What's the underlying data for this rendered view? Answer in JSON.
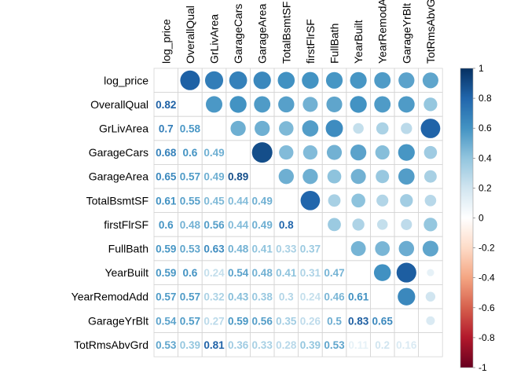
{
  "chart_data": {
    "type": "heatmap",
    "subtype": "correlation-matrix-mixed",
    "upper": "circle",
    "lower": "number",
    "diag": "blank",
    "variables": [
      "log_price",
      "OverallQual",
      "GrLivArea",
      "GarageCars",
      "GarageArea",
      "TotalBsmtSF",
      "firstFlrSF",
      "FullBath",
      "YearBuilt",
      "YearRemodAdd",
      "GarageYrBlt",
      "TotRmsAbvGrd"
    ],
    "lower_labels": [
      [],
      [
        "0.82"
      ],
      [
        "0.7",
        "0.58"
      ],
      [
        "0.68",
        "0.6",
        "0.49"
      ],
      [
        "0.65",
        "0.57",
        "0.49",
        "0.89"
      ],
      [
        "0.61",
        "0.55",
        "0.45",
        "0.44",
        "0.49"
      ],
      [
        "0.6",
        "0.48",
        "0.56",
        "0.44",
        "0.49",
        "0.8"
      ],
      [
        "0.59",
        "0.53",
        "0.63",
        "0.48",
        "0.41",
        "0.33",
        "0.37"
      ],
      [
        "0.59",
        "0.6",
        "0.24",
        "0.54",
        "0.48",
        "0.41",
        "0.31",
        "0.47"
      ],
      [
        "0.57",
        "0.57",
        "0.32",
        "0.43",
        "0.38",
        "0.3",
        "0.24",
        "0.46",
        "0.61"
      ],
      [
        "0.54",
        "0.57",
        "0.27",
        "0.59",
        "0.56",
        "0.35",
        "0.26",
        "0.5",
        "0.83",
        "0.65"
      ],
      [
        "0.53",
        "0.39",
        "0.81",
        "0.36",
        "0.33",
        "0.28",
        "0.39",
        "0.53",
        "0.11",
        "0.2",
        "0.16"
      ]
    ],
    "colorbar": {
      "range": [
        -1,
        1
      ],
      "ticks": [
        "1",
        "0.8",
        "0.6",
        "0.4",
        "0.2",
        "0",
        "-0.2",
        "-0.4",
        "-0.6",
        "-0.8",
        "-1"
      ],
      "colors": [
        "#67001F",
        "#B2182B",
        "#D6604D",
        "#F4A582",
        "#FDDBC7",
        "#FFFFFF",
        "#D1E5F0",
        "#92C5DE",
        "#4393C3",
        "#2166AC",
        "#053061"
      ]
    },
    "grid": true
  }
}
